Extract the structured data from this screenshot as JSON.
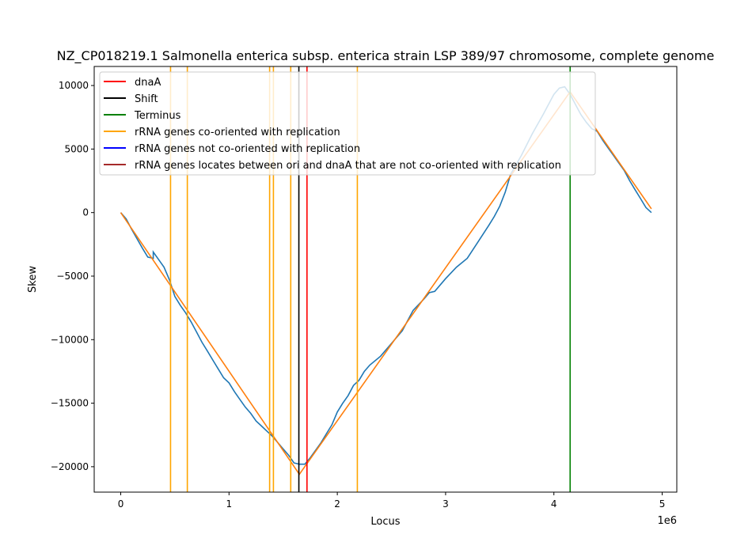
{
  "chart_data": {
    "type": "line",
    "title": "NZ_CP018219.1 Salmonella enterica subsp. enterica strain LSP 389/97 chromosome, complete genome",
    "xlabel": "Locus",
    "ylabel": "Skew",
    "x_offset_label": "1e6",
    "xlim": [
      -0.245,
      5.135
    ],
    "ylim": [
      -22000,
      11500
    ],
    "x_ticks": [
      0,
      1,
      2,
      3,
      4,
      5
    ],
    "x_tick_labels": [
      "0",
      "1",
      "2",
      "3",
      "4",
      "5"
    ],
    "y_ticks": [
      -20000,
      -15000,
      -10000,
      -5000,
      0,
      5000,
      10000
    ],
    "y_tick_labels": [
      "−20000",
      "−15000",
      "−10000",
      "−5000",
      "0",
      "5000",
      "10000"
    ],
    "grid": false,
    "legend_placement": "top-left",
    "series": [
      {
        "color": "#1f77b4",
        "x": [
          0.0,
          0.05,
          0.1,
          0.2,
          0.25,
          0.3,
          0.3,
          0.35,
          0.4,
          0.45,
          0.5,
          0.55,
          0.6,
          0.65,
          0.7,
          0.75,
          0.8,
          0.85,
          0.9,
          0.95,
          1.0,
          1.05,
          1.1,
          1.15,
          1.2,
          1.25,
          1.3,
          1.35,
          1.4,
          1.45,
          1.5,
          1.55,
          1.6,
          1.65,
          1.7,
          1.75,
          1.8,
          1.85,
          1.9,
          1.95,
          2.0,
          2.05,
          2.1,
          2.15,
          2.2,
          2.25,
          2.3,
          2.4,
          2.5,
          2.6,
          2.7,
          2.8,
          2.85,
          2.9,
          3.0,
          3.1,
          3.2,
          3.3,
          3.4,
          3.45,
          3.5,
          3.55,
          3.6,
          3.7,
          3.8,
          3.9,
          4.0,
          4.05,
          4.1,
          4.15,
          4.2,
          4.25,
          4.3,
          4.35,
          4.4,
          4.45,
          4.5,
          4.55,
          4.6,
          4.65,
          4.7,
          4.75,
          4.8,
          4.85,
          4.9
        ],
        "y": [
          0,
          -500,
          -1300,
          -2800,
          -3500,
          -3600,
          -3100,
          -3700,
          -4300,
          -5300,
          -6600,
          -7300,
          -7900,
          -8600,
          -9400,
          -10200,
          -10900,
          -11600,
          -12300,
          -13000,
          -13400,
          -14100,
          -14700,
          -15300,
          -15800,
          -16400,
          -16800,
          -17200,
          -17600,
          -18100,
          -18600,
          -19100,
          -19700,
          -19800,
          -19800,
          -19300,
          -18700,
          -18100,
          -17400,
          -16700,
          -15700,
          -15000,
          -14400,
          -13600,
          -13200,
          -12500,
          -12000,
          -11300,
          -10300,
          -9300,
          -7700,
          -6800,
          -6300,
          -6200,
          -5200,
          -4300,
          -3600,
          -2300,
          -1000,
          -300,
          500,
          1600,
          3000,
          4500,
          6200,
          7700,
          9300,
          9800,
          9900,
          9300,
          8500,
          7700,
          7100,
          6600,
          6400,
          5700,
          5100,
          4500,
          3900,
          3300,
          2500,
          1800,
          1100,
          400,
          0
        ]
      },
      {
        "color": "#ff7f0e",
        "x": [
          0.0,
          1.65,
          4.15,
          4.9
        ],
        "y": [
          0,
          -20600,
          9500,
          300
        ]
      }
    ],
    "vertical_lines": [
      {
        "x": 4.15,
        "color": "#008000"
      },
      {
        "x": 0.46,
        "color": "#ffa500"
      },
      {
        "x": 0.615,
        "color": "#ffa500"
      },
      {
        "x": 1.375,
        "color": "#ffa500"
      },
      {
        "x": 1.41,
        "color": "#ffa500"
      },
      {
        "x": 1.57,
        "color": "#ffa500"
      },
      {
        "x": 2.185,
        "color": "#ffa500"
      },
      {
        "x": 1.645,
        "color": "#000000"
      },
      {
        "x": 1.72,
        "color": "#ff0000"
      }
    ],
    "legend": [
      {
        "label": "dnaA",
        "color": "#ff0000"
      },
      {
        "label": "Shift",
        "color": "#000000"
      },
      {
        "label": "Terminus",
        "color": "#008000"
      },
      {
        "label": "rRNA genes co-oriented with replication",
        "color": "#ffa500"
      },
      {
        "label": "rRNA genes not co-oriented with replication",
        "color": "#0000ff"
      },
      {
        "label": "rRNA genes locates between ori and dnaA that are not co-oriented with replication",
        "color": "#a52a2a"
      }
    ]
  }
}
